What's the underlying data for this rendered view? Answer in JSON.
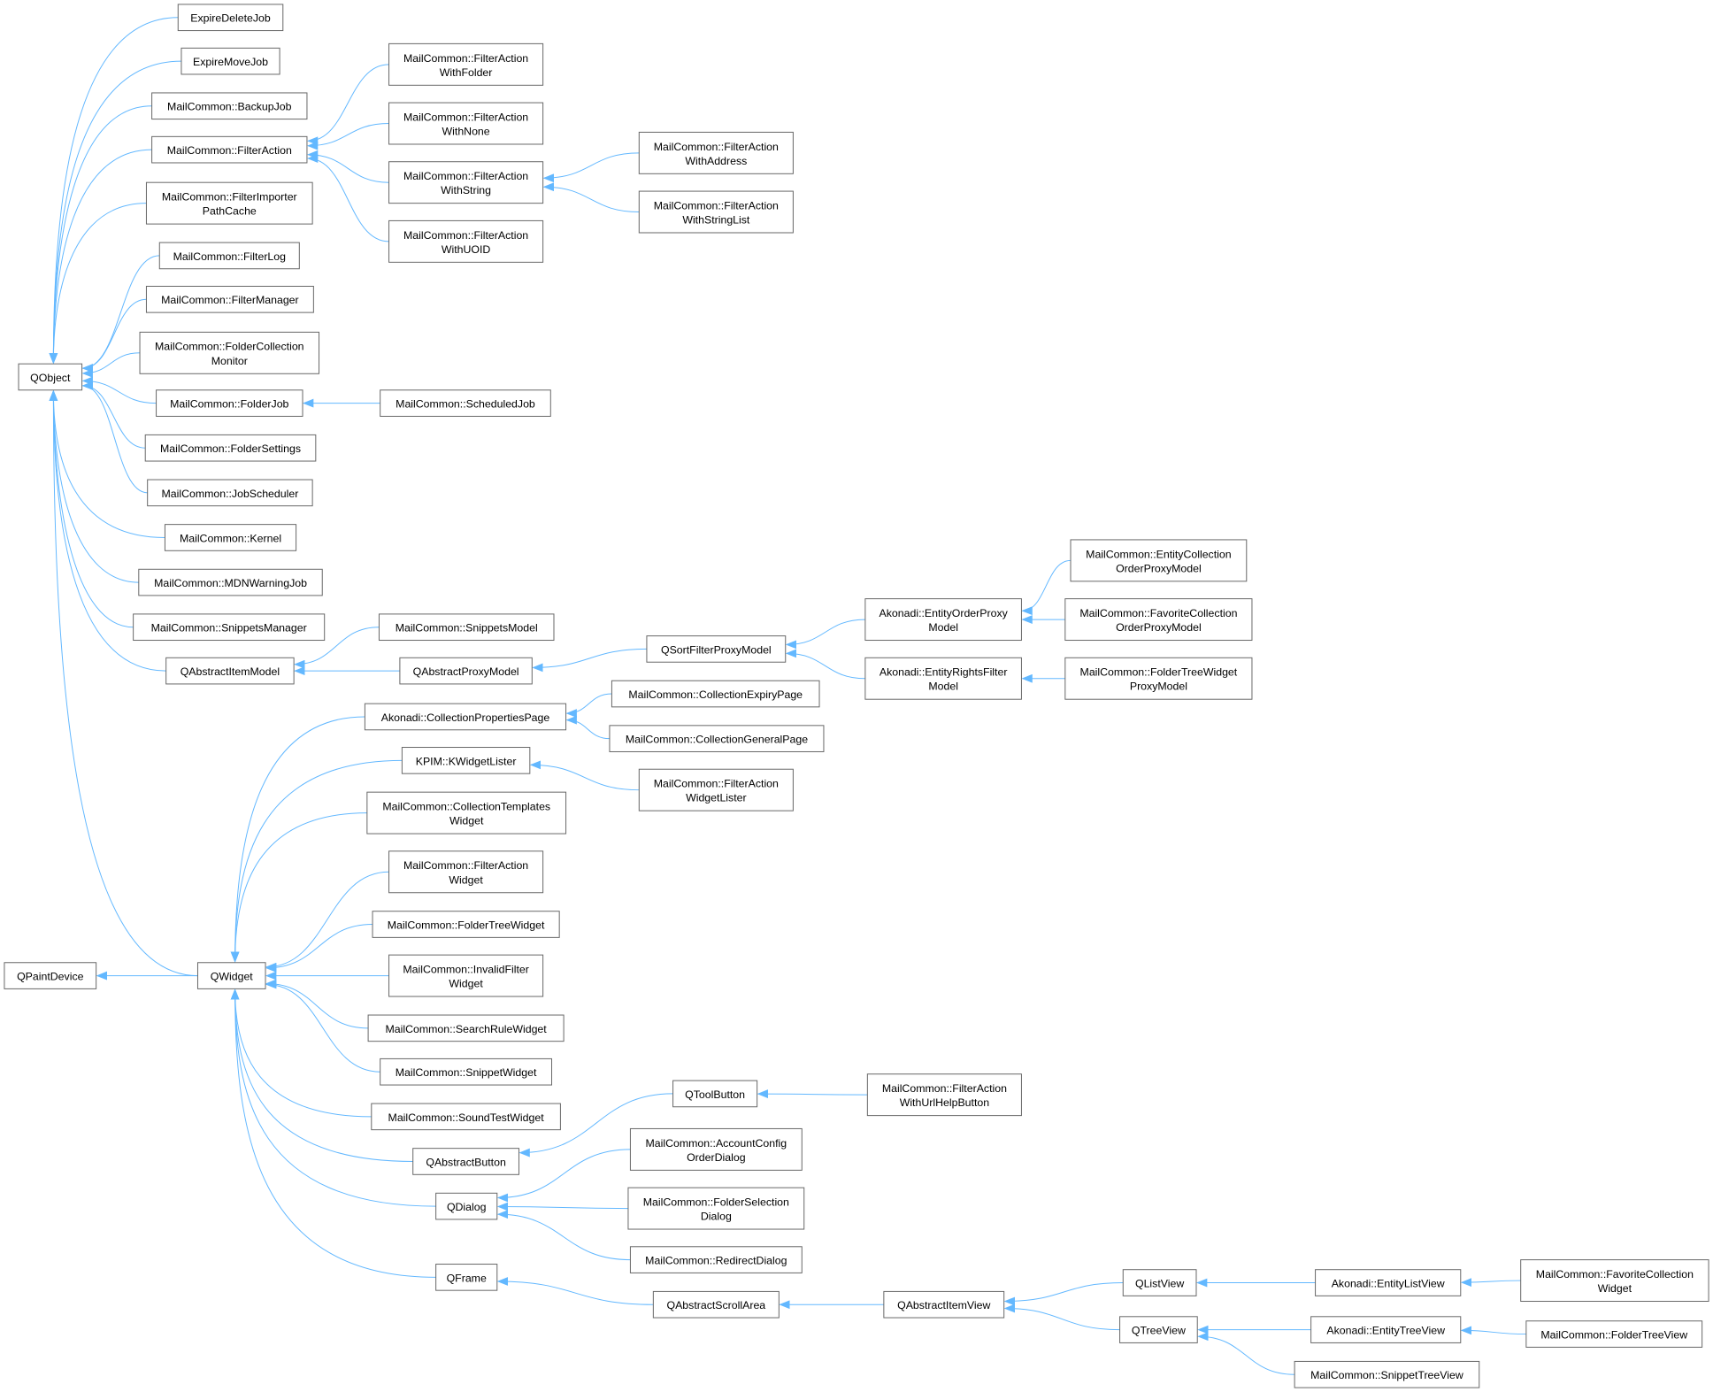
{
  "diagram": {
    "type": "class-inheritance-graph",
    "colors": {
      "edge": "#63b8ff",
      "node_border": "#666666",
      "node_fill": "#ffffff",
      "text": "#000000"
    },
    "nodes": [
      {
        "id": "QObject",
        "lines": [
          "QObject"
        ],
        "parent": null
      },
      {
        "id": "ExpireDeleteJob",
        "lines": [
          "ExpireDeleteJob"
        ],
        "parent": "QObject"
      },
      {
        "id": "ExpireMoveJob",
        "lines": [
          "ExpireMoveJob"
        ],
        "parent": "QObject"
      },
      {
        "id": "BackupJob",
        "lines": [
          "MailCommon::BackupJob"
        ],
        "parent": "QObject"
      },
      {
        "id": "FilterAction",
        "lines": [
          "MailCommon::FilterAction"
        ],
        "parent": "QObject"
      },
      {
        "id": "FilterImporterPathCache",
        "lines": [
          "MailCommon::FilterImporter",
          "PathCache"
        ],
        "parent": "QObject"
      },
      {
        "id": "FilterLog",
        "lines": [
          "MailCommon::FilterLog"
        ],
        "parent": "QObject"
      },
      {
        "id": "FilterManager",
        "lines": [
          "MailCommon::FilterManager"
        ],
        "parent": "QObject"
      },
      {
        "id": "FolderCollectionMonitor",
        "lines": [
          "MailCommon::FolderCollection",
          "Monitor"
        ],
        "parent": "QObject"
      },
      {
        "id": "FolderJob",
        "lines": [
          "MailCommon::FolderJob"
        ],
        "parent": "QObject"
      },
      {
        "id": "FolderSettings",
        "lines": [
          "MailCommon::FolderSettings"
        ],
        "parent": "QObject"
      },
      {
        "id": "JobScheduler",
        "lines": [
          "MailCommon::JobScheduler"
        ],
        "parent": "QObject"
      },
      {
        "id": "Kernel",
        "lines": [
          "MailCommon::Kernel"
        ],
        "parent": "QObject"
      },
      {
        "id": "MDNWarningJob",
        "lines": [
          "MailCommon::MDNWarningJob"
        ],
        "parent": "QObject"
      },
      {
        "id": "SnippetsManager",
        "lines": [
          "MailCommon::SnippetsManager"
        ],
        "parent": "QObject"
      },
      {
        "id": "QAbstractItemModel",
        "lines": [
          "QAbstractItemModel"
        ],
        "parent": "QObject"
      },
      {
        "id": "FAWithFolder",
        "lines": [
          "MailCommon::FilterAction",
          "WithFolder"
        ],
        "parent": "FilterAction"
      },
      {
        "id": "FAWithNone",
        "lines": [
          "MailCommon::FilterAction",
          "WithNone"
        ],
        "parent": "FilterAction"
      },
      {
        "id": "FAWithString",
        "lines": [
          "MailCommon::FilterAction",
          "WithString"
        ],
        "parent": "FilterAction"
      },
      {
        "id": "FAWithUOID",
        "lines": [
          "MailCommon::FilterAction",
          "WithUOID"
        ],
        "parent": "FilterAction"
      },
      {
        "id": "FAWithAddress",
        "lines": [
          "MailCommon::FilterAction",
          "WithAddress"
        ],
        "parent": "FAWithString"
      },
      {
        "id": "FAWithStringList",
        "lines": [
          "MailCommon::FilterAction",
          "WithStringList"
        ],
        "parent": "FAWithString"
      },
      {
        "id": "ScheduledJob",
        "lines": [
          "MailCommon::ScheduledJob"
        ],
        "parent": "FolderJob"
      },
      {
        "id": "SnippetsModel",
        "lines": [
          "MailCommon::SnippetsModel"
        ],
        "parent": "QAbstractItemModel"
      },
      {
        "id": "QAbstractProxyModel",
        "lines": [
          "QAbstractProxyModel"
        ],
        "parent": "QAbstractItemModel"
      },
      {
        "id": "QSortFilterProxyModel",
        "lines": [
          "QSortFilterProxyModel"
        ],
        "parent": "QAbstractProxyModel"
      },
      {
        "id": "EntityOrderProxyModel",
        "lines": [
          "Akonadi::EntityOrderProxy",
          "Model"
        ],
        "parent": "QSortFilterProxyModel"
      },
      {
        "id": "EntityRightsFilterModel",
        "lines": [
          "Akonadi::EntityRightsFilter",
          "Model"
        ],
        "parent": "QSortFilterProxyModel"
      },
      {
        "id": "EntityCollectionOrderProxyModel",
        "lines": [
          "MailCommon::EntityCollection",
          "OrderProxyModel"
        ],
        "parent": "EntityOrderProxyModel"
      },
      {
        "id": "FavoriteCollectionOrderProxyModel",
        "lines": [
          "MailCommon::FavoriteCollection",
          "OrderProxyModel"
        ],
        "parent": "EntityOrderProxyModel"
      },
      {
        "id": "FolderTreeWidgetProxyModel",
        "lines": [
          "MailCommon::FolderTreeWidget",
          "ProxyModel"
        ],
        "parent": "EntityRightsFilterModel"
      },
      {
        "id": "QPaintDevice",
        "lines": [
          "QPaintDevice"
        ],
        "parent": null
      },
      {
        "id": "QWidget",
        "lines": [
          "QWidget"
        ],
        "parent": "QObject",
        "parent2": "QPaintDevice"
      },
      {
        "id": "CollectionPropertiesPage",
        "lines": [
          "Akonadi::CollectionPropertiesPage"
        ],
        "parent": "QWidget"
      },
      {
        "id": "CollectionExpiryPage",
        "lines": [
          "MailCommon::CollectionExpiryPage"
        ],
        "parent": "CollectionPropertiesPage"
      },
      {
        "id": "CollectionGeneralPage",
        "lines": [
          "MailCommon::CollectionGeneralPage"
        ],
        "parent": "CollectionPropertiesPage"
      },
      {
        "id": "KWidgetLister",
        "lines": [
          "KPIM::KWidgetLister"
        ],
        "parent": "QWidget"
      },
      {
        "id": "FAWidgetLister",
        "lines": [
          "MailCommon::FilterAction",
          "WidgetLister"
        ],
        "parent": "KWidgetLister"
      },
      {
        "id": "CollectionTemplatesWidget",
        "lines": [
          "MailCommon::CollectionTemplates",
          "Widget"
        ],
        "parent": "QWidget"
      },
      {
        "id": "FAWidget",
        "lines": [
          "MailCommon::FilterAction",
          "Widget"
        ],
        "parent": "QWidget"
      },
      {
        "id": "FolderTreeWidget",
        "lines": [
          "MailCommon::FolderTreeWidget"
        ],
        "parent": "QWidget"
      },
      {
        "id": "InvalidFilterWidget",
        "lines": [
          "MailCommon::InvalidFilter",
          "Widget"
        ],
        "parent": "QWidget"
      },
      {
        "id": "SearchRuleWidget",
        "lines": [
          "MailCommon::SearchRuleWidget"
        ],
        "parent": "QWidget"
      },
      {
        "id": "SnippetWidget",
        "lines": [
          "MailCommon::SnippetWidget"
        ],
        "parent": "QWidget"
      },
      {
        "id": "SoundTestWidget",
        "lines": [
          "MailCommon::SoundTestWidget"
        ],
        "parent": "QWidget"
      },
      {
        "id": "QAbstractButton",
        "lines": [
          "QAbstractButton"
        ],
        "parent": "QWidget"
      },
      {
        "id": "QToolButton",
        "lines": [
          "QToolButton"
        ],
        "parent": "QAbstractButton"
      },
      {
        "id": "FAWithUrlHelpButton",
        "lines": [
          "MailCommon::FilterAction",
          "WithUrlHelpButton"
        ],
        "parent": "QToolButton"
      },
      {
        "id": "QDialog",
        "lines": [
          "QDialog"
        ],
        "parent": "QWidget"
      },
      {
        "id": "AccountConfigOrderDialog",
        "lines": [
          "MailCommon::AccountConfig",
          "OrderDialog"
        ],
        "parent": "QDialog"
      },
      {
        "id": "FolderSelectionDialog",
        "lines": [
          "MailCommon::FolderSelection",
          "Dialog"
        ],
        "parent": "QDialog"
      },
      {
        "id": "RedirectDialog",
        "lines": [
          "MailCommon::RedirectDialog"
        ],
        "parent": "QDialog"
      },
      {
        "id": "QFrame",
        "lines": [
          "QFrame"
        ],
        "parent": "QWidget"
      },
      {
        "id": "QAbstractScrollArea",
        "lines": [
          "QAbstractScrollArea"
        ],
        "parent": "QFrame"
      },
      {
        "id": "QAbstractItemView",
        "lines": [
          "QAbstractItemView"
        ],
        "parent": "QAbstractScrollArea"
      },
      {
        "id": "QListView",
        "lines": [
          "QListView"
        ],
        "parent": "QAbstractItemView"
      },
      {
        "id": "QTreeView",
        "lines": [
          "QTreeView"
        ],
        "parent": "QAbstractItemView"
      },
      {
        "id": "EntityListView",
        "lines": [
          "Akonadi::EntityListView"
        ],
        "parent": "QListView"
      },
      {
        "id": "EntityTreeView",
        "lines": [
          "Akonadi::EntityTreeView"
        ],
        "parent": "QTreeView"
      },
      {
        "id": "SnippetTreeView",
        "lines": [
          "MailCommon::SnippetTreeView"
        ],
        "parent": "QTreeView"
      },
      {
        "id": "FavoriteCollectionWidget",
        "lines": [
          "MailCommon::FavoriteCollection",
          "Widget"
        ],
        "parent": "EntityListView"
      },
      {
        "id": "FolderTreeView",
        "lines": [
          "MailCommon::FolderTreeView"
        ],
        "parent": "EntityTreeView"
      }
    ]
  }
}
